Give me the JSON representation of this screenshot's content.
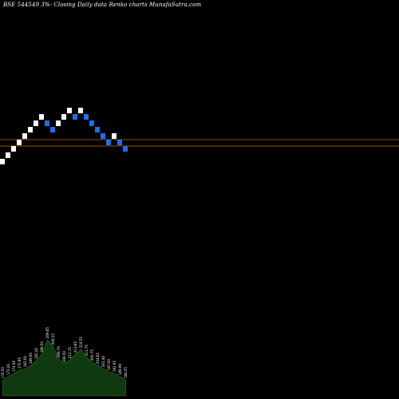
{
  "chart_data": {
    "type": "renko",
    "title": "BSE 544549 3%- Closing Daily data Renko charts MunafaSutra.com",
    "grid": false,
    "colors": {
      "background": "#000000",
      "up": "#ffffff",
      "down": "#1e6fe8",
      "level_line": "#c8651e",
      "volume_fill": "#0f3a0f",
      "volume_stroke": "#2d7a2d"
    },
    "bricks": [
      {
        "dir": "up",
        "open": 170,
        "close": 175
      },
      {
        "dir": "up",
        "open": 175,
        "close": 180
      },
      {
        "dir": "up",
        "open": 180,
        "close": 185
      },
      {
        "dir": "up",
        "open": 185,
        "close": 190
      },
      {
        "dir": "up",
        "open": 190,
        "close": 195
      },
      {
        "dir": "up",
        "open": 195,
        "close": 200
      },
      {
        "dir": "up",
        "open": 200,
        "close": 205
      },
      {
        "dir": "up",
        "open": 205,
        "close": 210
      },
      {
        "dir": "down",
        "open": 205,
        "close": 200
      },
      {
        "dir": "down",
        "open": 200,
        "close": 195
      },
      {
        "dir": "up",
        "open": 200,
        "close": 205
      },
      {
        "dir": "up",
        "open": 205,
        "close": 210
      },
      {
        "dir": "up",
        "open": 210,
        "close": 215
      },
      {
        "dir": "down",
        "open": 210,
        "close": 205
      },
      {
        "dir": "up",
        "open": 210,
        "close": 215
      },
      {
        "dir": "down",
        "open": 210,
        "close": 205
      },
      {
        "dir": "down",
        "open": 205,
        "close": 200
      },
      {
        "dir": "down",
        "open": 200,
        "close": 195
      },
      {
        "dir": "down",
        "open": 195,
        "close": 190
      },
      {
        "dir": "down",
        "open": 190,
        "close": 185
      },
      {
        "dir": "up",
        "open": 190,
        "close": 195
      },
      {
        "dir": "down",
        "open": 190,
        "close": 185
      },
      {
        "dir": "down",
        "open": 185,
        "close": 180
      }
    ],
    "levels": [
      190,
      185
    ],
    "volume_labels": [
      "176.50",
      "172.20",
      "174.50",
      "175.95",
      "183.00",
      "189.95",
      "192.20",
      "196.50",
      "209.65",
      "209.15",
      "206.70",
      "206.50",
      "212.15",
      "213.65",
      "216.55",
      "211.75",
      "205.75",
      "204.65",
      "201.40",
      "197.00",
      "192.95",
      "189.99",
      "184.55"
    ],
    "volume": [
      20,
      24,
      28,
      32,
      34,
      38,
      44,
      52,
      70,
      62,
      46,
      40,
      45,
      52,
      58,
      48,
      42,
      38,
      34,
      30,
      28,
      24,
      20
    ]
  }
}
